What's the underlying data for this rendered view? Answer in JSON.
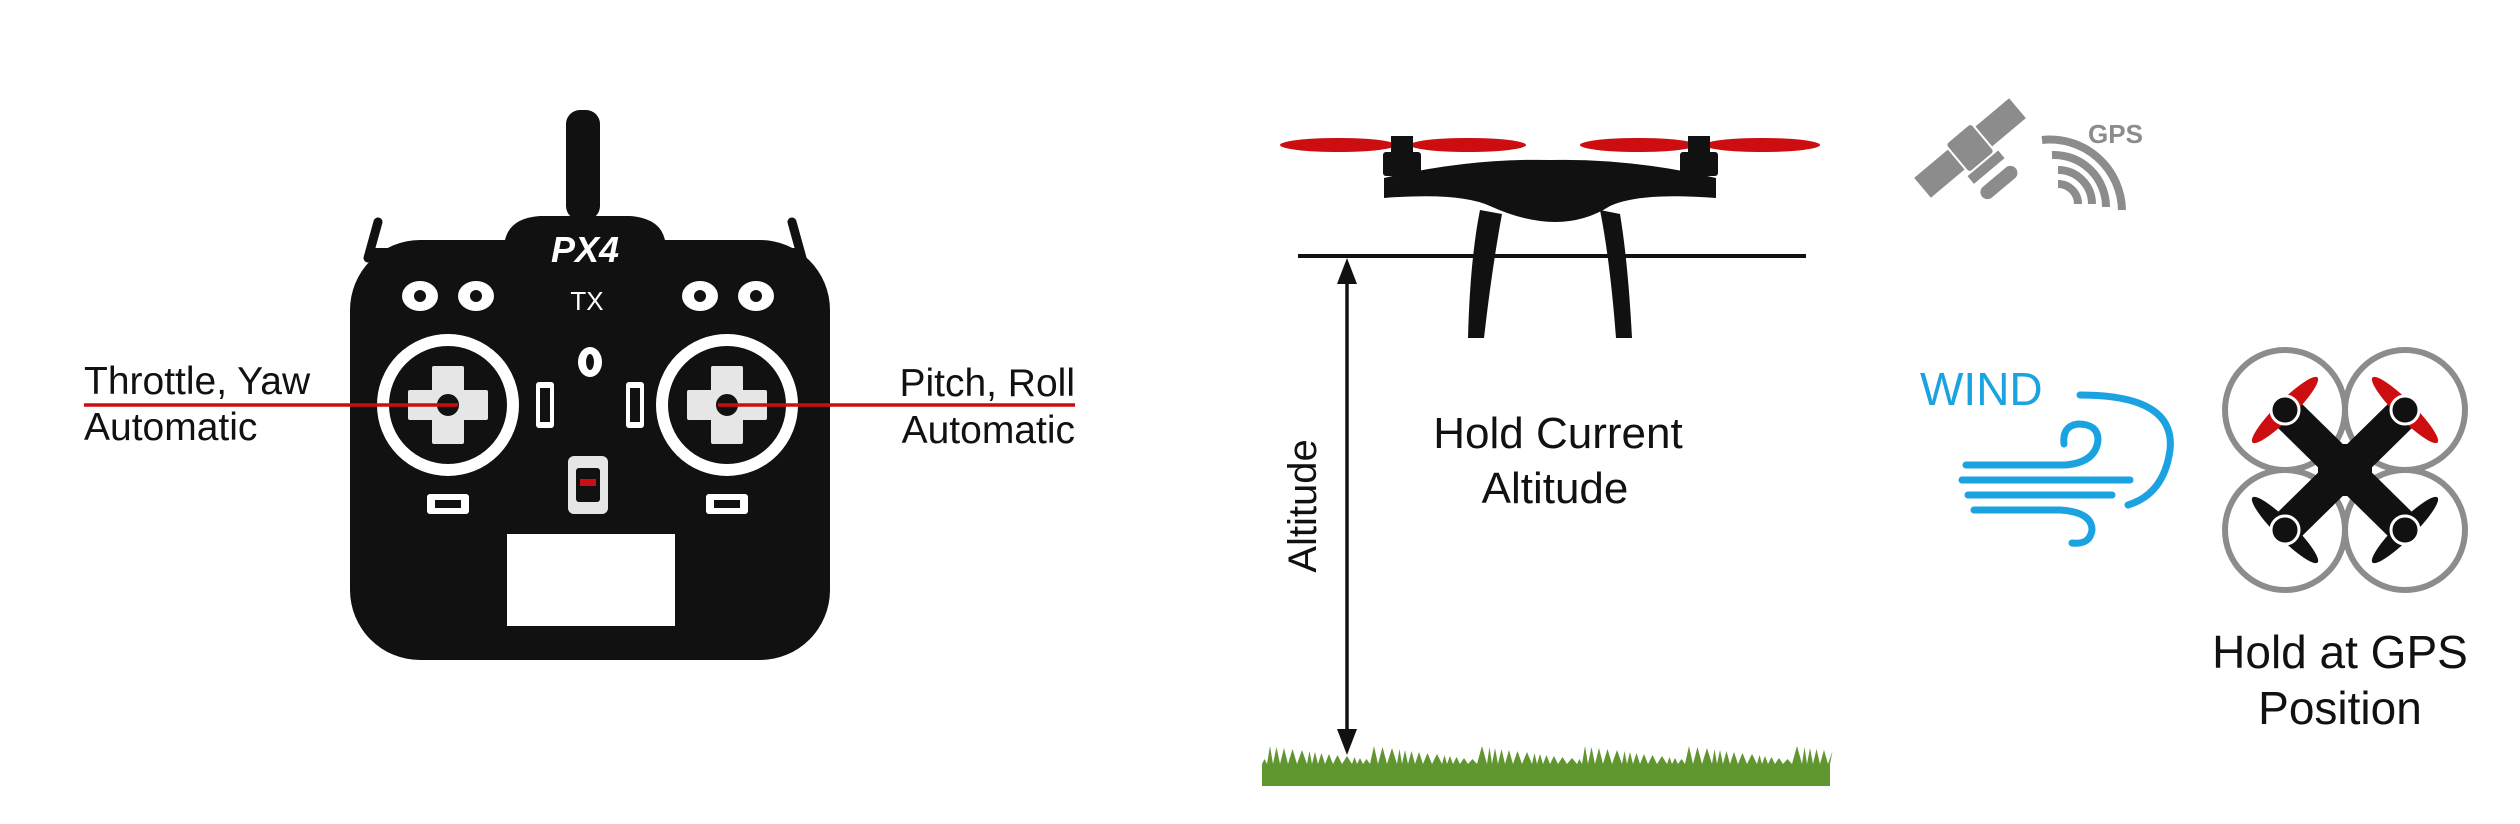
{
  "transmitter": {
    "brand": "PX4",
    "model": "TX",
    "left_stick": {
      "line1": "Throttle, Yaw",
      "line2": "Automatic"
    },
    "right_stick": {
      "line1": "Pitch, Roll",
      "line2": "Automatic"
    }
  },
  "altitude": {
    "axis_label": "Altitude",
    "caption_line1": "Hold Current",
    "caption_line2": "Altitude"
  },
  "position": {
    "gps_label": "GPS",
    "wind_label": "WIND",
    "caption_line1": "Hold at GPS",
    "caption_line2": "Position"
  },
  "colors": {
    "accent_red": "#cc0e10",
    "wind_blue": "#1aa3e0",
    "grass_green": "#5f9630",
    "icon_gray": "#8c8c8c",
    "body_black": "#111111"
  }
}
